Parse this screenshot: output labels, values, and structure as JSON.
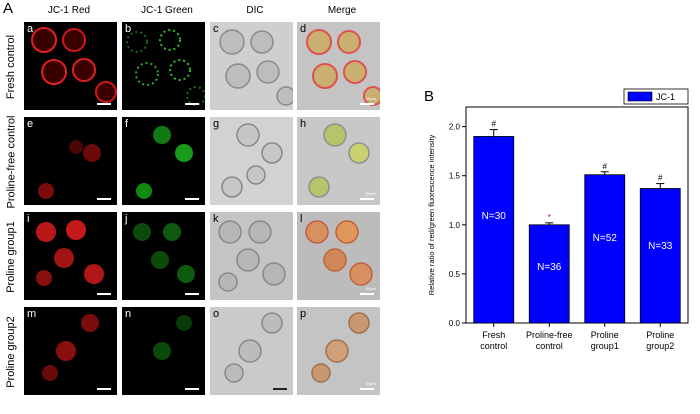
{
  "figure": {
    "panel_a_letter": "A",
    "panel_b_letter": "B",
    "column_headers": [
      "JC-1 Red",
      "JC-1 Green",
      "DIC",
      "Merge"
    ],
    "row_labels": [
      "Fresh  control",
      "Proline-free  control",
      "Proline group1",
      "Proline group2"
    ],
    "panel_letters": [
      [
        "a",
        "b",
        "c",
        "d"
      ],
      [
        "e",
        "f",
        "g",
        "h"
      ],
      [
        "i",
        "j",
        "k",
        "l"
      ],
      [
        "m",
        "n",
        "o",
        "p"
      ]
    ],
    "scale_text": "50μm",
    "colors": {
      "red_channel": "#e02020",
      "green_channel": "#30c030",
      "dic_bg": "#cfcfcf",
      "bar": "#0000ff"
    }
  },
  "chart_data": {
    "type": "bar",
    "categories": [
      "Fresh\ncontrol",
      "Proline-free\ncontrol",
      "Proline\ngroup1",
      "Proline\ngroup2"
    ],
    "values": [
      1.9,
      1.0,
      1.51,
      1.37
    ],
    "errors": [
      0.07,
      0.02,
      0.03,
      0.05
    ],
    "n_labels": [
      "N=30",
      "N=36",
      "N=52",
      "N=33"
    ],
    "significance": [
      "#",
      "*",
      "#",
      "#"
    ],
    "significance_colors": [
      "#000000",
      "#e00000",
      "#000000",
      "#000000"
    ],
    "ylabel": "Relative ratio of red/green fluorescence intensity",
    "ylim": [
      0,
      2.2
    ],
    "yticks": [
      0.0,
      0.5,
      1.0,
      1.5,
      2.0
    ],
    "ytick_labels": [
      "0.0",
      "0.5",
      "1.0",
      "1.5",
      "2.0"
    ],
    "legend": "JC-1",
    "legend_position": "top-right",
    "bar_color": "#0000ff"
  }
}
